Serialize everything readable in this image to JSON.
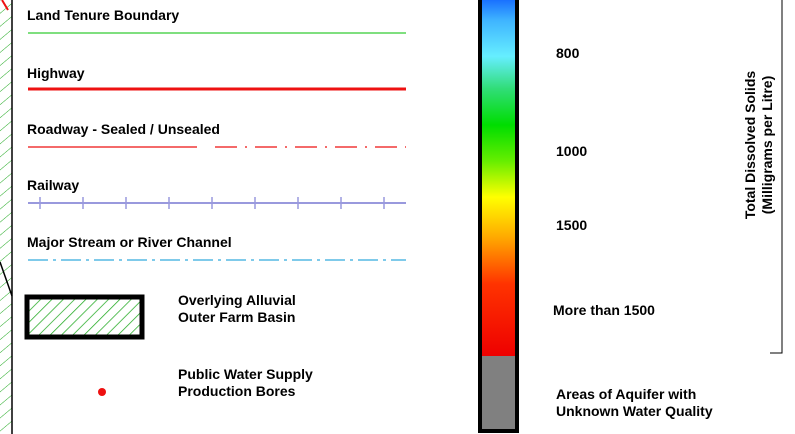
{
  "legend": {
    "land_tenure": "Land Tenure Boundary",
    "highway": "Highway",
    "roadway": "Roadway - Sealed / Unsealed",
    "railway": "Railway",
    "stream": "Major Stream or River Channel",
    "alluvial": [
      "Overlying Alluvial",
      "Outer Farm Basin"
    ],
    "bores": [
      "Public Water Supply",
      "Production Bores"
    ]
  },
  "colorbar": {
    "ticks": [
      "800",
      "1000",
      "1500",
      "More than 1500"
    ],
    "title": [
      "Total Dissolved Solids",
      "(Milligrams per Litre)"
    ],
    "unknown": [
      "Areas of Aquifer with",
      "Unknown Water Quality"
    ]
  },
  "colors": {
    "land_tenure": "#33cc33",
    "highway": "#ee1111",
    "railway": "#9999dd",
    "stream": "#33aadd",
    "hatch": "#22aa22",
    "bore": "#ee1111",
    "unknown": "#808080"
  }
}
